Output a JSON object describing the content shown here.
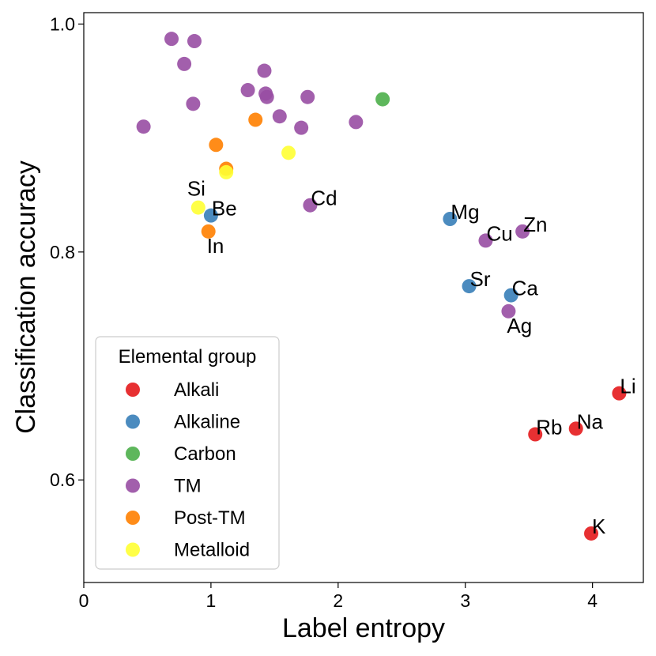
{
  "chart_data": {
    "type": "scatter",
    "xlabel": "Label entropy",
    "ylabel": "Classification accuracy",
    "xlim": [
      0,
      4.4
    ],
    "ylim": [
      0.51,
      1.01
    ],
    "x_ticks": [
      0,
      1,
      2,
      3,
      4
    ],
    "x_tick_labels": [
      "0",
      "1",
      "2",
      "3",
      "4"
    ],
    "y_ticks": [
      0.6,
      0.8,
      1.0
    ],
    "y_tick_labels": [
      "0.6",
      "0.8",
      "1.0"
    ],
    "legend": {
      "title": "Elemental group",
      "position": "bottom-left",
      "groups": [
        {
          "name": "Alkali",
          "color": "#e41a1c"
        },
        {
          "name": "Alkaline",
          "color": "#377eb8"
        },
        {
          "name": "Carbon",
          "color": "#4daf4a"
        },
        {
          "name": "TM",
          "color": "#984ea3"
        },
        {
          "name": "Post-TM",
          "color": "#ff7f00"
        },
        {
          "name": "Metalloid",
          "color": "#ffff33"
        }
      ]
    },
    "points": [
      {
        "x": 0.69,
        "y": 0.987,
        "group": "TM"
      },
      {
        "x": 0.87,
        "y": 0.985,
        "group": "TM"
      },
      {
        "x": 0.79,
        "y": 0.965,
        "group": "TM"
      },
      {
        "x": 0.86,
        "y": 0.93,
        "group": "TM"
      },
      {
        "x": 0.47,
        "y": 0.91,
        "group": "TM"
      },
      {
        "x": 1.29,
        "y": 0.942,
        "group": "TM"
      },
      {
        "x": 1.42,
        "y": 0.959,
        "group": "TM"
      },
      {
        "x": 1.43,
        "y": 0.939,
        "group": "TM"
      },
      {
        "x": 1.44,
        "y": 0.936,
        "group": "TM"
      },
      {
        "x": 1.54,
        "y": 0.919,
        "group": "TM"
      },
      {
        "x": 1.71,
        "y": 0.909,
        "group": "TM"
      },
      {
        "x": 1.76,
        "y": 0.936,
        "group": "TM"
      },
      {
        "x": 2.14,
        "y": 0.914,
        "group": "TM"
      },
      {
        "x": 2.35,
        "y": 0.934,
        "group": "Carbon"
      },
      {
        "x": 1.35,
        "y": 0.916,
        "group": "Post-TM"
      },
      {
        "x": 1.04,
        "y": 0.894,
        "group": "Post-TM"
      },
      {
        "x": 1.12,
        "y": 0.873,
        "group": "Post-TM"
      },
      {
        "x": 1.61,
        "y": 0.887,
        "group": "Metalloid"
      },
      {
        "x": 1.12,
        "y": 0.87,
        "group": "Metalloid"
      },
      {
        "x": 0.9,
        "y": 0.839,
        "group": "Metalloid",
        "label": "Si",
        "label_pos": "above-left"
      },
      {
        "x": 1.0,
        "y": 0.832,
        "group": "Alkaline",
        "label": "Be",
        "label_pos": "right"
      },
      {
        "x": 0.98,
        "y": 0.818,
        "group": "Post-TM",
        "label": "In",
        "label_pos": "below-right"
      },
      {
        "x": 1.78,
        "y": 0.841,
        "group": "TM",
        "label": "Cd",
        "label_pos": "right"
      },
      {
        "x": 2.88,
        "y": 0.829,
        "group": "Alkaline",
        "label": "Mg",
        "label_pos": "right"
      },
      {
        "x": 3.16,
        "y": 0.81,
        "group": "TM",
        "label": "Cu",
        "label_pos": "right"
      },
      {
        "x": 3.45,
        "y": 0.818,
        "group": "TM",
        "label": "Zn",
        "label_pos": "right"
      },
      {
        "x": 3.03,
        "y": 0.77,
        "group": "Alkaline",
        "label": "Sr",
        "label_pos": "right"
      },
      {
        "x": 3.36,
        "y": 0.762,
        "group": "Alkaline",
        "label": "Ca",
        "label_pos": "right"
      },
      {
        "x": 3.34,
        "y": 0.748,
        "group": "TM",
        "label": "Ag",
        "label_pos": "below-right"
      },
      {
        "x": 4.21,
        "y": 0.676,
        "group": "Alkali",
        "label": "Li",
        "label_pos": "right"
      },
      {
        "x": 3.87,
        "y": 0.645,
        "group": "Alkali",
        "label": "Na",
        "label_pos": "right"
      },
      {
        "x": 3.55,
        "y": 0.64,
        "group": "Alkali",
        "label": "Rb",
        "label_pos": "right"
      },
      {
        "x": 3.99,
        "y": 0.553,
        "group": "Alkali",
        "label": "K",
        "label_pos": "right"
      }
    ]
  }
}
